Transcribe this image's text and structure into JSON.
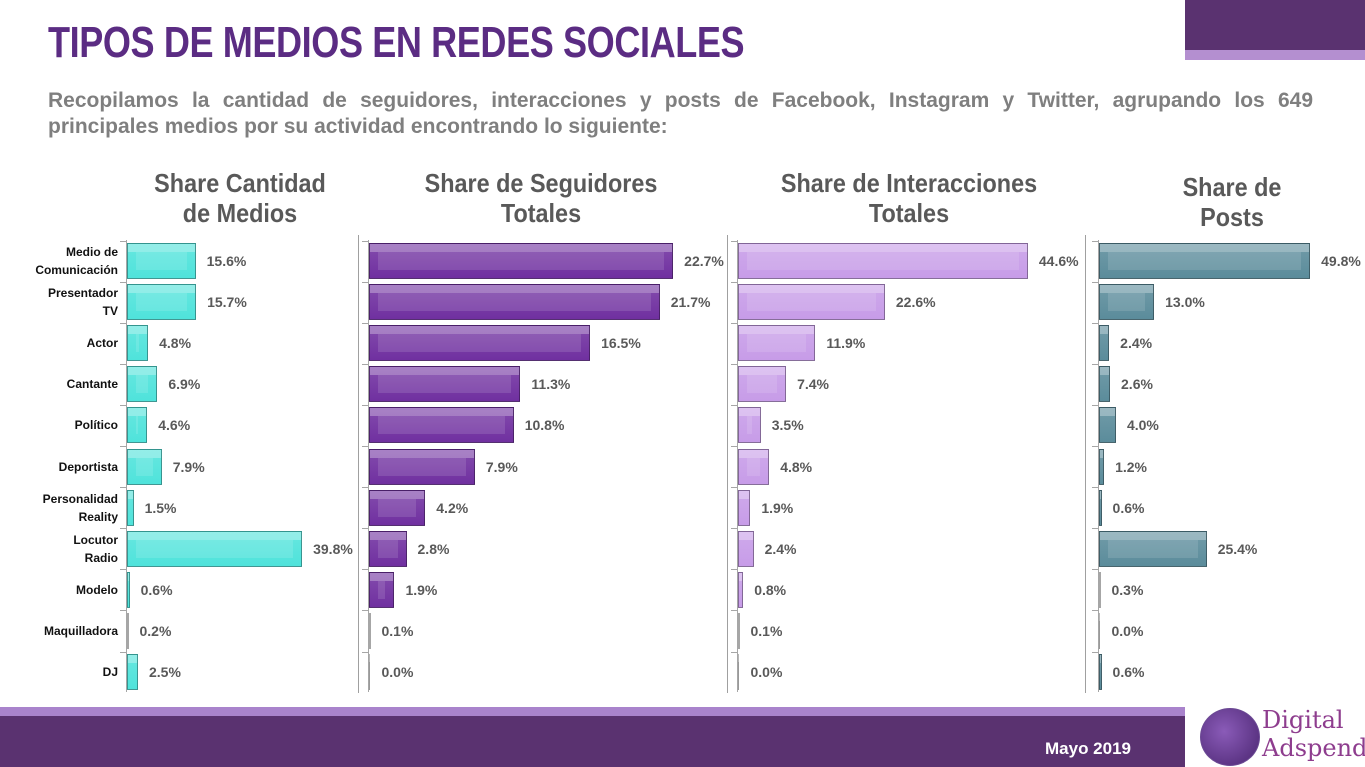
{
  "header": {
    "title": "TIPOS DE MEDIOS EN REDES SOCIALES",
    "subtitle": "Recopilamos la cantidad de seguidores, interacciones y posts de Facebook, Instagram y Twitter, agrupando los 649 principales medios por su actividad encontrando lo siguiente:"
  },
  "footer": {
    "date": "Mayo 2019",
    "logo_line1": "Digital",
    "logo_line2": "Adspend"
  },
  "chart_data": [
    {
      "type": "bar",
      "orientation": "horizontal",
      "title": "Share Cantidad de Medios",
      "title_lines": [
        "Share Cantidad",
        "de Medios"
      ],
      "color": "#4fe3db",
      "categories": [
        "Medio de Comunicación",
        "Presentador TV",
        "Actor",
        "Cantante",
        "Político",
        "Deportista",
        "Personalidad Reality",
        "Locutor Radio",
        "Modelo",
        "Maquilladora",
        "DJ"
      ],
      "category_lines": [
        [
          "Medio de",
          "Comunicación"
        ],
        [
          "Presentador",
          "TV"
        ],
        [
          "Actor"
        ],
        [
          "Cantante"
        ],
        [
          "Político"
        ],
        [
          "Deportista"
        ],
        [
          "Personalidad",
          "Reality"
        ],
        [
          "Locutor",
          "Radio"
        ],
        [
          "Modelo"
        ],
        [
          "Maquilladora"
        ],
        [
          "DJ"
        ]
      ],
      "values": [
        15.6,
        15.7,
        4.8,
        6.9,
        4.6,
        7.9,
        1.5,
        39.8,
        0.6,
        0.2,
        2.5
      ],
      "labels": [
        "15.6%",
        "15.7%",
        "4.8%",
        "6.9%",
        "4.6%",
        "7.9%",
        "1.5%",
        "39.8%",
        "0.6%",
        "0.2%",
        "2.5%"
      ]
    },
    {
      "type": "bar",
      "orientation": "horizontal",
      "title": "Share de Seguidores Totales",
      "title_lines": [
        "Share de Seguidores",
        "Totales"
      ],
      "color": "#7030a0",
      "values": [
        22.7,
        21.7,
        16.5,
        11.3,
        10.8,
        7.9,
        4.2,
        2.8,
        1.9,
        0.1,
        0.0
      ],
      "labels": [
        "22.7%",
        "21.7%",
        "16.5%",
        "11.3%",
        "10.8%",
        "7.9%",
        "4.2%",
        "2.8%",
        "1.9%",
        "0.1%",
        "0.0%"
      ]
    },
    {
      "type": "bar",
      "orientation": "horizontal",
      "title": "Share de Interacciones Totales",
      "title_lines": [
        "Share de Interacciones",
        "Totales"
      ],
      "color": "#c79ce8",
      "values": [
        44.6,
        22.6,
        11.9,
        7.4,
        3.5,
        4.8,
        1.9,
        2.4,
        0.8,
        0.1,
        0.0
      ],
      "labels": [
        "44.6%",
        "22.6%",
        "11.9%",
        "7.4%",
        "3.5%",
        "4.8%",
        "1.9%",
        "2.4%",
        "0.8%",
        "0.1%",
        "0.0%"
      ]
    },
    {
      "type": "bar",
      "orientation": "horizontal",
      "title": "Share de Posts",
      "title_lines": [
        "Share de",
        "Posts"
      ],
      "color": "#5b8c9b",
      "values": [
        49.8,
        13.0,
        2.4,
        2.6,
        4.0,
        1.2,
        0.6,
        25.4,
        0.3,
        0.0,
        0.6
      ],
      "labels": [
        "49.8%",
        "13.0%",
        "2.4%",
        "2.6%",
        "4.0%",
        "1.2%",
        "0.6%",
        "25.4%",
        "0.3%",
        "0.0%",
        "0.6%"
      ]
    }
  ]
}
